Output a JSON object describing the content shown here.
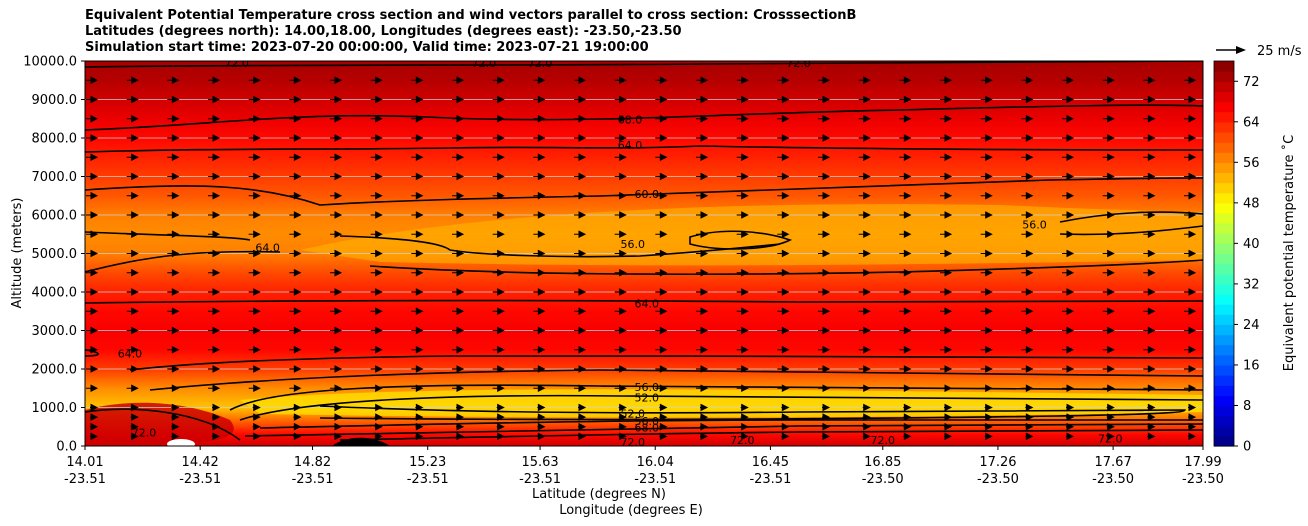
{
  "chart_data": {
    "type": "heatmap",
    "title_lines": [
      "Equivalent Potential Temperature cross section and wind vectors parallel to cross section: CrosssectionB",
      "Latitudes (degrees north): 14.00,18.00, Longitudes (degrees east): -23.50,-23.50",
      "Simulation start time: 2023-07-20 00:00:00, Valid time: 2023-07-21 19:00:00"
    ],
    "xlabel_lat": "Latitude (degrees N)",
    "xlabel_lon": "Longitude (degrees E)",
    "ylabel": "Altitude (meters)",
    "colorbar_label": "Equivalent potential temperature ˚C",
    "wind_key_label": "25 m/s",
    "ylim": [
      0,
      10000
    ],
    "clim": [
      0,
      76
    ],
    "grid": "horizontal",
    "y_ticks": [
      "0.0",
      "1000.0",
      "2000.0",
      "3000.0",
      "4000.0",
      "5000.0",
      "6000.0",
      "7000.0",
      "8000.0",
      "9000.0",
      "10000.0"
    ],
    "x_ticks": [
      {
        "lat": "14.01",
        "lon": "-23.51"
      },
      {
        "lat": "14.42",
        "lon": "-23.51"
      },
      {
        "lat": "14.82",
        "lon": "-23.51"
      },
      {
        "lat": "15.23",
        "lon": "-23.51"
      },
      {
        "lat": "15.63",
        "lon": "-23.51"
      },
      {
        "lat": "16.04",
        "lon": "-23.51"
      },
      {
        "lat": "16.45",
        "lon": "-23.51"
      },
      {
        "lat": "16.85",
        "lon": "-23.50"
      },
      {
        "lat": "17.26",
        "lon": "-23.50"
      },
      {
        "lat": "17.67",
        "lon": "-23.50"
      },
      {
        "lat": "17.99",
        "lon": "-23.50"
      }
    ],
    "colorbar_ticks": [
      "0",
      "8",
      "16",
      "24",
      "32",
      "40",
      "48",
      "56",
      "64",
      "72"
    ],
    "altitude_profile": {
      "altitude_m": [
        0,
        300,
        800,
        1000,
        1500,
        2000,
        2500,
        3000,
        3500,
        4000,
        4500,
        5000,
        5500,
        6000,
        6500,
        7000,
        7500,
        8000,
        8500,
        9000,
        9500,
        10000
      ],
      "theta_e_C": [
        70,
        66,
        56,
        52,
        56,
        62,
        66,
        67,
        66,
        64,
        61,
        57,
        56,
        57,
        60,
        62,
        64,
        66,
        68,
        70,
        72,
        73
      ]
    },
    "contour_labels": [
      {
        "text": "72.0",
        "lat": 15.63,
        "alt": 9950
      },
      {
        "text": "72.0",
        "lat": 15.43,
        "alt": 9950
      },
      {
        "text": "72.0",
        "lat": 14.55,
        "alt": 9950
      },
      {
        "text": "72.0",
        "lat": 16.55,
        "alt": 9950
      },
      {
        "text": "68.0",
        "lat": 15.95,
        "alt": 8480
      },
      {
        "text": "64.0",
        "lat": 15.95,
        "alt": 7820
      },
      {
        "text": "60.0",
        "lat": 16.01,
        "alt": 6550
      },
      {
        "text": "64.0",
        "lat": 14.66,
        "alt": 5150
      },
      {
        "text": "56.0",
        "lat": 15.96,
        "alt": 5250
      },
      {
        "text": "56.0",
        "lat": 17.39,
        "alt": 5750
      },
      {
        "text": "64.0",
        "lat": 16.01,
        "alt": 3700
      },
      {
        "text": "64.0",
        "lat": 14.17,
        "alt": 2400
      },
      {
        "text": "56.0",
        "lat": 16.01,
        "alt": 1530
      },
      {
        "text": "52.0",
        "lat": 16.01,
        "alt": 1260
      },
      {
        "text": "52.0",
        "lat": 15.96,
        "alt": 850
      },
      {
        "text": "56.0",
        "lat": 16.01,
        "alt": 650
      },
      {
        "text": "68.0",
        "lat": 16.01,
        "alt": 480
      },
      {
        "text": "72.0",
        "lat": 15.96,
        "alt": 100
      },
      {
        "text": "72.0",
        "lat": 16.35,
        "alt": 150
      },
      {
        "text": "72.0",
        "lat": 16.85,
        "alt": 150
      },
      {
        "text": "72.0",
        "lat": 17.66,
        "alt": 200
      },
      {
        "text": "72.0",
        "lat": 14.22,
        "alt": 350
      }
    ],
    "wind_vector_altitudes_m": [
      250,
      500,
      750,
      1000,
      1500,
      2000,
      2500,
      3000,
      3500,
      4000,
      4500,
      5000,
      5500,
      6000,
      6500,
      7000,
      7500,
      8000,
      8500,
      9000,
      9500
    ],
    "colors": {
      "colormap": [
        "#00007f",
        "#0000ff",
        "#007fff",
        "#00ffff",
        "#7fff7f",
        "#ffff00",
        "#ff7f00",
        "#ff0000",
        "#7f0000"
      ],
      "contour": "#000000",
      "gridline": "#cfcfcf"
    }
  }
}
